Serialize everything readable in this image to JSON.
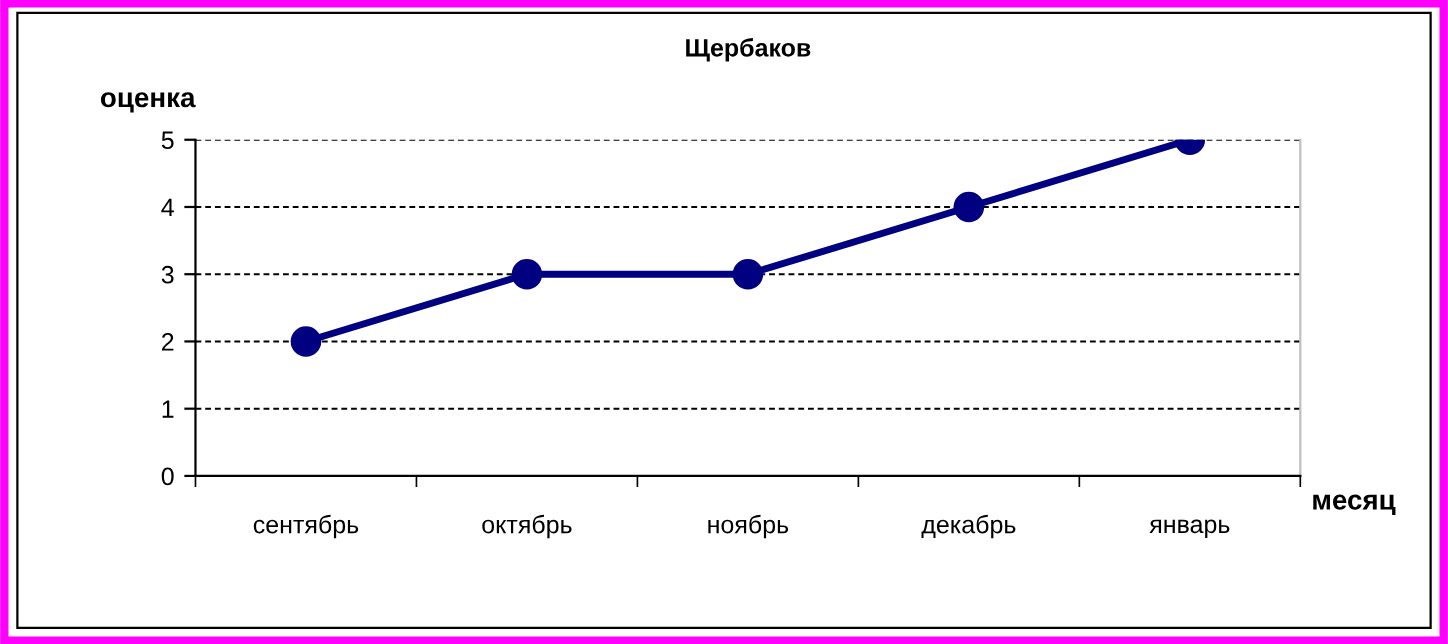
{
  "chart_data": {
    "type": "line",
    "title": "Щербаков",
    "xlabel": "месяц",
    "ylabel": "оценка",
    "categories": [
      "сентябрь",
      "октябрь",
      "ноябрь",
      "декабрь",
      "январь"
    ],
    "series": [
      {
        "color": "#000080",
        "values": [
          2,
          3,
          3,
          4,
          5
        ]
      }
    ],
    "ylim": [
      0,
      5
    ],
    "yticks": [
      0,
      1,
      2,
      3,
      4,
      5
    ],
    "grid": "y",
    "legend": false,
    "marker": "circle",
    "line_style": "solid"
  }
}
